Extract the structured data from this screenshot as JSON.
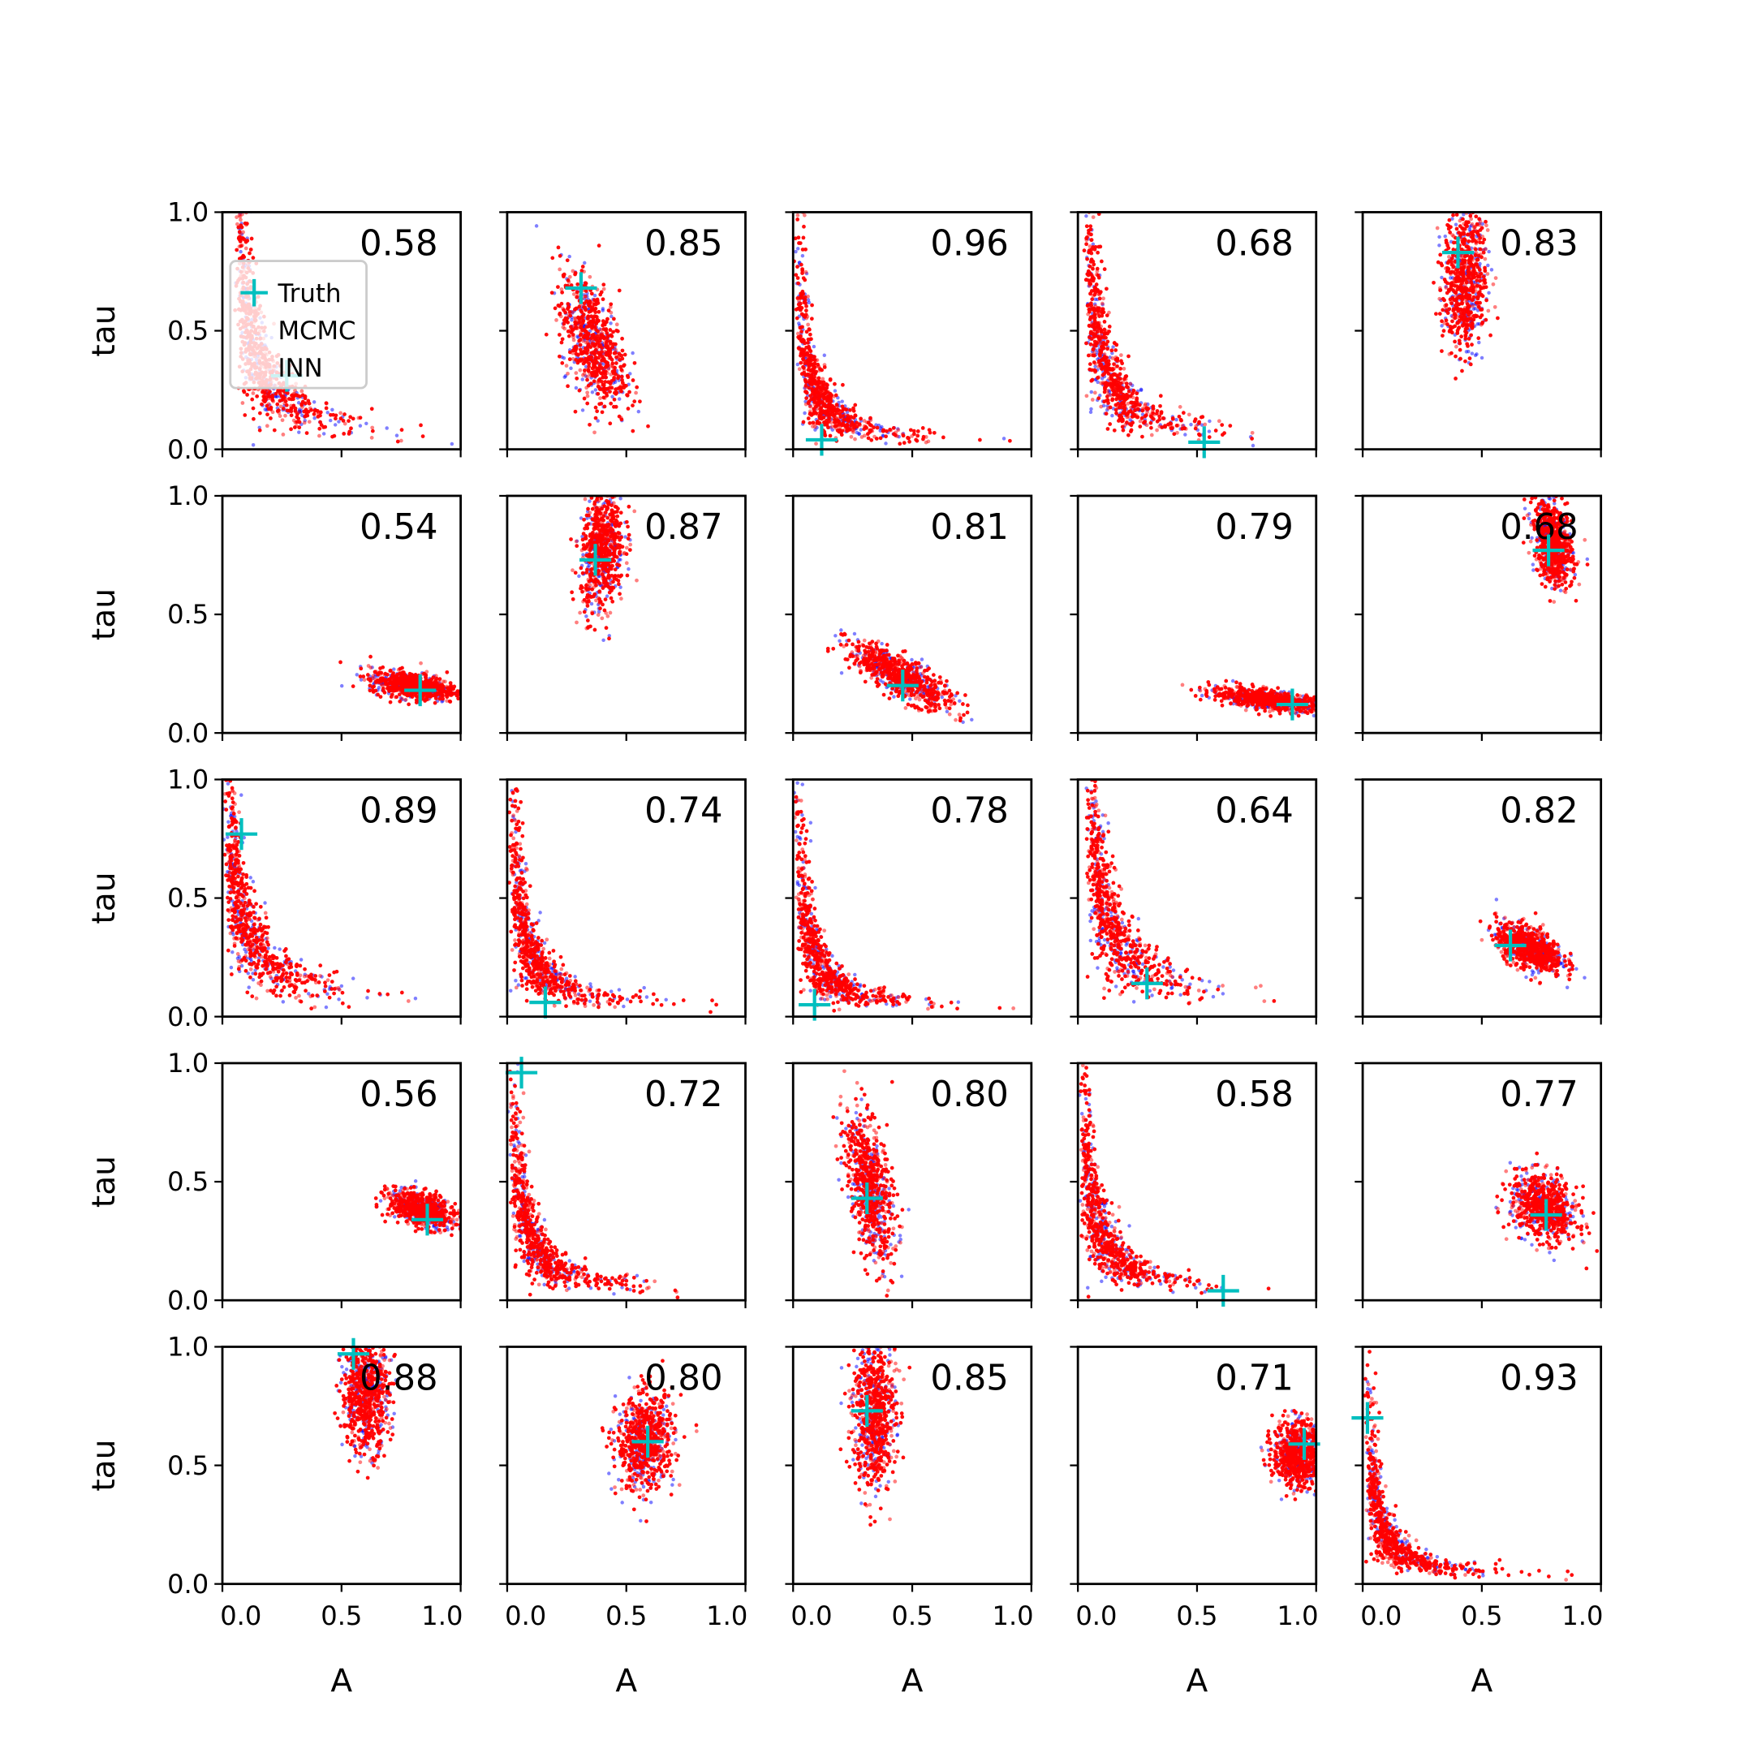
{
  "chart_data": {
    "type": "scatter",
    "title": "",
    "xlabel": "A",
    "ylabel": "tau",
    "xlim": [
      0,
      1
    ],
    "ylim": [
      0,
      1
    ],
    "xticks": [
      "0.0",
      "0.5",
      "1.0"
    ],
    "yticks": [
      "0.0",
      "0.5",
      "1.0"
    ],
    "grid": false,
    "legend": {
      "placement": "top-left of first panel",
      "entries": [
        "Truth",
        "MCMC",
        "INN"
      ]
    },
    "colors": {
      "truth": "#00bfbf",
      "mcmc": "#0000ff",
      "inn": "#ff0000"
    },
    "panels": [
      {
        "score": "0.58",
        "truth": [
          0.27,
          0.31
        ],
        "cloud": {
          "shape": "L",
          "a0": 0.05,
          "k": 0.05
        }
      },
      {
        "score": "0.85",
        "truth": [
          0.31,
          0.68
        ],
        "cloud": {
          "shape": "blob",
          "c": [
            0.36,
            0.45
          ],
          "s": [
            0.07,
            0.14
          ],
          "rho": -0.5
        }
      },
      {
        "score": "0.96",
        "truth": [
          0.12,
          0.04
        ],
        "cloud": {
          "shape": "L",
          "a0": 0.0,
          "k": 0.025
        }
      },
      {
        "score": "0.68",
        "truth": [
          0.53,
          0.03
        ],
        "cloud": {
          "shape": "L",
          "a0": 0.02,
          "k": 0.04
        }
      },
      {
        "score": "0.83",
        "truth": [
          0.4,
          0.83
        ],
        "cloud": {
          "shape": "blob",
          "c": [
            0.43,
            0.72
          ],
          "s": [
            0.045,
            0.16
          ],
          "rho": 0.1
        }
      },
      {
        "score": "0.54",
        "truth": [
          0.83,
          0.18
        ],
        "cloud": {
          "shape": "blob",
          "c": [
            0.8,
            0.2
          ],
          "s": [
            0.09,
            0.03
          ],
          "rho": -0.4
        }
      },
      {
        "score": "0.87",
        "truth": [
          0.37,
          0.73
        ],
        "cloud": {
          "shape": "blob",
          "c": [
            0.4,
            0.78
          ],
          "s": [
            0.045,
            0.13
          ],
          "rho": 0.2
        }
      },
      {
        "score": "0.81",
        "truth": [
          0.46,
          0.2
        ],
        "cloud": {
          "shape": "blob",
          "c": [
            0.45,
            0.24
          ],
          "s": [
            0.11,
            0.07
          ],
          "rho": -0.8
        }
      },
      {
        "score": "0.79",
        "truth": [
          0.9,
          0.12
        ],
        "cloud": {
          "shape": "blob",
          "c": [
            0.8,
            0.14
          ],
          "s": [
            0.12,
            0.025
          ],
          "rho": -0.6
        }
      },
      {
        "score": "0.68",
        "truth": [
          0.78,
          0.77
        ],
        "cloud": {
          "shape": "blob",
          "c": [
            0.8,
            0.8
          ],
          "s": [
            0.04,
            0.09
          ],
          "rho": -0.3
        }
      },
      {
        "score": "0.89",
        "truth": [
          0.08,
          0.77
        ],
        "cloud": {
          "shape": "L",
          "a0": 0.0,
          "k": 0.05
        }
      },
      {
        "score": "0.74",
        "truth": [
          0.16,
          0.06
        ],
        "cloud": {
          "shape": "L",
          "a0": 0.0,
          "k": 0.03
        }
      },
      {
        "score": "0.78",
        "truth": [
          0.09,
          0.05
        ],
        "cloud": {
          "shape": "L",
          "a0": 0.0,
          "k": 0.025
        }
      },
      {
        "score": "0.64",
        "truth": [
          0.29,
          0.14
        ],
        "cloud": {
          "shape": "L",
          "a0": 0.03,
          "k": 0.06
        }
      },
      {
        "score": "0.82",
        "truth": [
          0.62,
          0.3
        ],
        "cloud": {
          "shape": "blob",
          "c": [
            0.7,
            0.29
          ],
          "s": [
            0.07,
            0.05
          ],
          "rho": -0.5
        }
      },
      {
        "score": "0.56",
        "truth": [
          0.86,
          0.34
        ],
        "cloud": {
          "shape": "blob",
          "c": [
            0.84,
            0.38
          ],
          "s": [
            0.07,
            0.04
          ],
          "rho": -0.5
        }
      },
      {
        "score": "0.72",
        "truth": [
          0.06,
          0.96
        ],
        "cloud": {
          "shape": "L",
          "a0": 0.0,
          "k": 0.03
        }
      },
      {
        "score": "0.80",
        "truth": [
          0.31,
          0.43
        ],
        "cloud": {
          "shape": "blob",
          "c": [
            0.32,
            0.48
          ],
          "s": [
            0.05,
            0.16
          ],
          "rho": -0.5
        }
      },
      {
        "score": "0.58",
        "truth": [
          0.61,
          0.04
        ],
        "cloud": {
          "shape": "L",
          "a0": 0.0,
          "k": 0.03
        }
      },
      {
        "score": "0.77",
        "truth": [
          0.77,
          0.36
        ],
        "cloud": {
          "shape": "blob",
          "c": [
            0.76,
            0.39
          ],
          "s": [
            0.07,
            0.07
          ],
          "rho": -0.3
        }
      },
      {
        "score": "0.88",
        "truth": [
          0.55,
          0.97
        ],
        "cloud": {
          "shape": "blob",
          "c": [
            0.6,
            0.8
          ],
          "s": [
            0.05,
            0.12
          ],
          "rho": 0.0
        }
      },
      {
        "score": "0.80",
        "truth": [
          0.59,
          0.6
        ],
        "cloud": {
          "shape": "blob",
          "c": [
            0.58,
            0.6
          ],
          "s": [
            0.06,
            0.1
          ],
          "rho": 0.1
        }
      },
      {
        "score": "0.85",
        "truth": [
          0.31,
          0.73
        ],
        "cloud": {
          "shape": "blob",
          "c": [
            0.34,
            0.72
          ],
          "s": [
            0.045,
            0.16
          ],
          "rho": 0.0
        }
      },
      {
        "score": "0.71",
        "truth": [
          0.95,
          0.59
        ],
        "cloud": {
          "shape": "blob",
          "c": [
            0.92,
            0.55
          ],
          "s": [
            0.05,
            0.07
          ],
          "rho": 0.0
        }
      },
      {
        "score": "0.93",
        "truth": [
          0.02,
          0.7
        ],
        "cloud": {
          "shape": "L",
          "a0": 0.0,
          "k": 0.02
        }
      }
    ]
  }
}
